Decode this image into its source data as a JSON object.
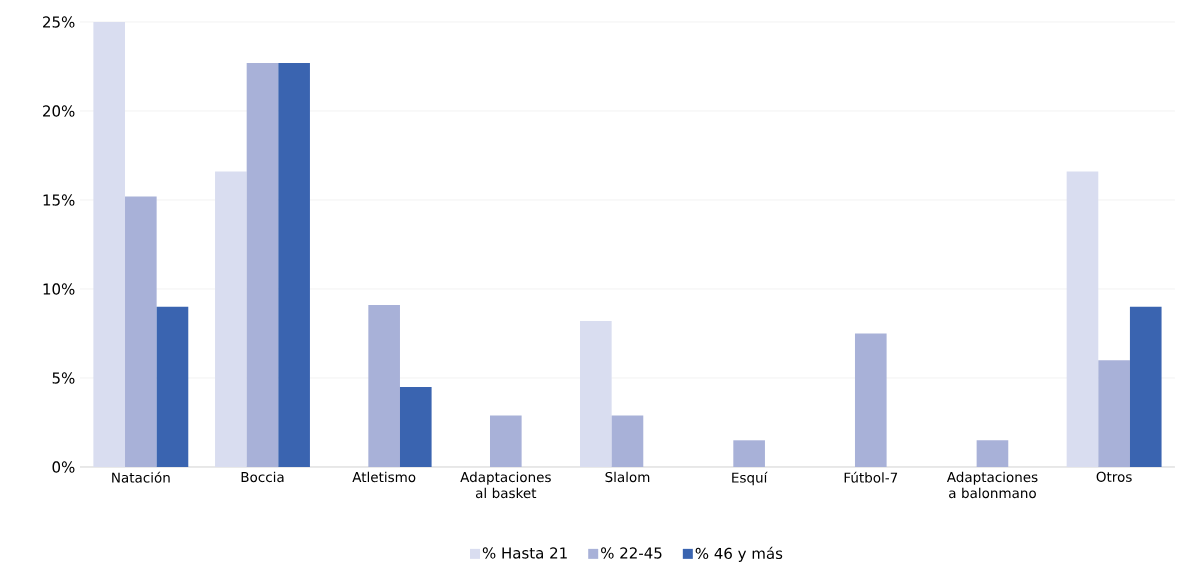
{
  "chart_data": {
    "type": "bar",
    "categories": [
      "Natación",
      "Boccia",
      "Atletismo",
      "Adaptaciones al basket",
      "Slalom",
      "Esquí",
      "Fútbol-7",
      "Adaptaciones a balonmano",
      "Otros"
    ],
    "series": [
      {
        "name": "% Hasta 21",
        "color": "#d9ddf0",
        "values": [
          25,
          16.6,
          0,
          0,
          8.2,
          0,
          0,
          0,
          16.6
        ]
      },
      {
        "name": "% 22-45",
        "color": "#a8b1d8",
        "values": [
          15.2,
          22.7,
          9.1,
          2.9,
          2.9,
          1.5,
          7.5,
          1.5,
          6.0
        ]
      },
      {
        "name": "% 46 y más",
        "color": "#3a64b0",
        "values": [
          9.0,
          22.7,
          4.5,
          0,
          0,
          0,
          0,
          0,
          9.0
        ]
      }
    ],
    "ylim": [
      0,
      25
    ],
    "yticks": [
      {
        "value": 0,
        "label": "0%"
      },
      {
        "value": 5,
        "label": "5%"
      },
      {
        "value": 10,
        "label": "10%"
      },
      {
        "value": 15,
        "label": "15%"
      },
      {
        "value": 20,
        "label": "20%"
      },
      {
        "value": 25,
        "label": "25%"
      }
    ],
    "grid": "y",
    "legend": "bottom"
  }
}
